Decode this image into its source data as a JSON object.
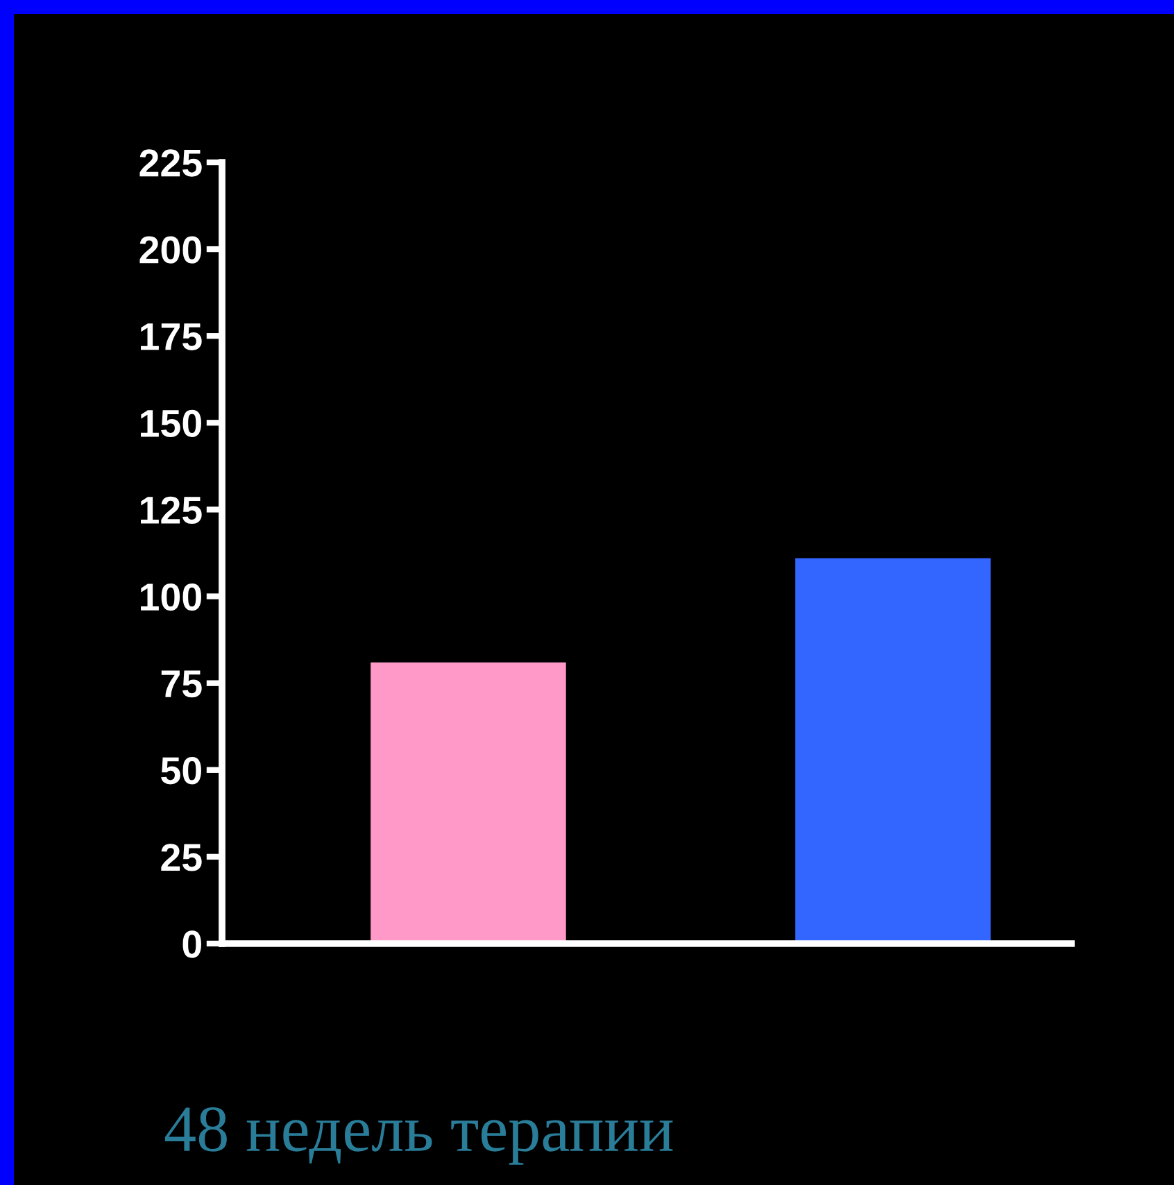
{
  "chart_data": {
    "type": "bar",
    "categories": [
      null,
      null
    ],
    "values": [
      81,
      111
    ],
    "colors": [
      "#ff99c8",
      "#3366ff"
    ],
    "ylim": [
      0,
      225
    ],
    "yticks": [
      0,
      25,
      50,
      75,
      100,
      125,
      150,
      175,
      200,
      225
    ],
    "grid": false,
    "tick_labels": "y",
    "annotations": [
      "48 недель терапии"
    ]
  }
}
